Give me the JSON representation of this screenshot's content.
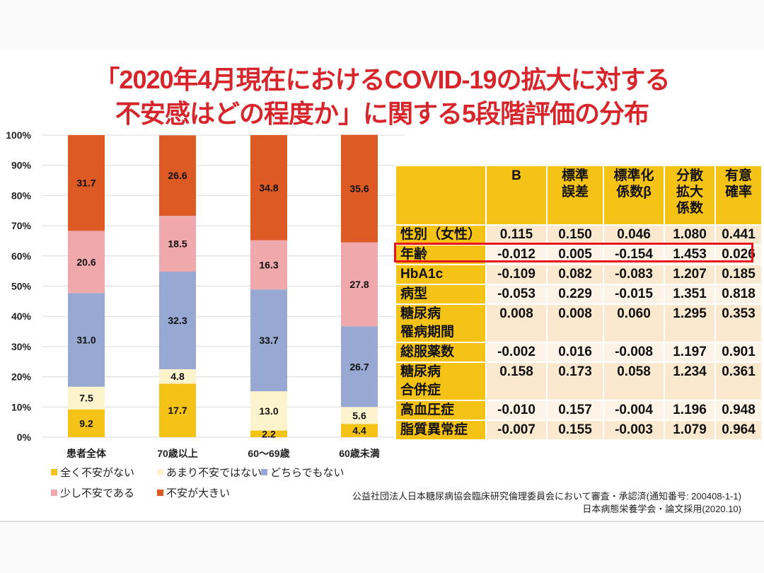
{
  "title": {
    "line1": "「2020年4月現在におけるCOVID-19の拡大に対する",
    "line2": "不安感はどの程度か」に関する5段階評価の分布"
  },
  "chart_data": {
    "type": "bar",
    "stacked": true,
    "percent_stacked": true,
    "categories": [
      "患者全体",
      "70歳以上",
      "60〜69歳",
      "60歳未満"
    ],
    "series": [
      {
        "name": "全く不安がない",
        "color": "#f5c216",
        "values": [
          9.2,
          17.7,
          2.2,
          4.4
        ]
      },
      {
        "name": "あまり不安ではない",
        "color": "#fdf3cc",
        "values": [
          7.5,
          4.8,
          13.0,
          5.6
        ]
      },
      {
        "name": "どちらでもない",
        "color": "#97a8d2",
        "values": [
          31.0,
          32.3,
          33.7,
          26.7
        ]
      },
      {
        "name": "少し不安である",
        "color": "#efa8ac",
        "values": [
          20.6,
          18.5,
          16.3,
          27.8
        ]
      },
      {
        "name": "不安が大きい",
        "color": "#de5a24",
        "values": [
          31.7,
          26.6,
          34.8,
          35.6
        ]
      }
    ],
    "yticks": [
      "0%",
      "10%",
      "20%",
      "30%",
      "40%",
      "50%",
      "60%",
      "70%",
      "80%",
      "90%",
      "100%"
    ],
    "ylim": [
      0,
      100
    ],
    "grid": true,
    "legend_position": "bottom",
    "xlabel": "",
    "ylabel": ""
  },
  "table": {
    "headers": [
      {
        "lines": [
          ""
        ]
      },
      {
        "lines": [
          "B"
        ]
      },
      {
        "lines": [
          "標準",
          "誤差"
        ]
      },
      {
        "lines": [
          "標準化",
          "係数β"
        ]
      },
      {
        "lines": [
          "分散",
          "拡大",
          "係数"
        ]
      },
      {
        "lines": [
          "有意",
          "確率"
        ]
      }
    ],
    "rows": [
      {
        "label": [
          "性別（女性）"
        ],
        "values": [
          "0.115",
          "0.150",
          "0.046",
          "1.080",
          "0.441"
        ]
      },
      {
        "label": [
          "年齢"
        ],
        "values": [
          "-0.012",
          "0.005",
          "-0.154",
          "1.453",
          "0.026"
        ],
        "highlighted": true
      },
      {
        "label": [
          "HbA1c"
        ],
        "values": [
          "-0.109",
          "0.082",
          "-0.083",
          "1.207",
          "0.185"
        ]
      },
      {
        "label": [
          "病型"
        ],
        "values": [
          "-0.053",
          "0.229",
          "-0.015",
          "1.351",
          "0.818"
        ]
      },
      {
        "label": [
          "糖尿病",
          "罹病期間"
        ],
        "values": [
          "0.008",
          "0.008",
          "0.060",
          "1.295",
          "0.353"
        ]
      },
      {
        "label": [
          "総服薬数"
        ],
        "values": [
          "-0.002",
          "0.016",
          "-0.008",
          "1.197",
          "0.901"
        ]
      },
      {
        "label": [
          "糖尿病",
          "合併症"
        ],
        "values": [
          "0.158",
          "0.173",
          "0.058",
          "1.234",
          "0.361"
        ]
      },
      {
        "label": [
          "高血圧症"
        ],
        "values": [
          "-0.010",
          "0.157",
          "-0.004",
          "1.196",
          "0.948"
        ]
      },
      {
        "label": [
          "脂質異常症"
        ],
        "values": [
          "-0.007",
          "0.155",
          "-0.003",
          "1.079",
          "0.964"
        ]
      }
    ],
    "colors": {
      "header": "#f5c216",
      "highlight_border": "#e8121c"
    }
  },
  "footnote": {
    "line1": "公益社団法人日本糖尿病協会臨床研究倫理委員会において審査・承認済(通知番号: 200408-1-1)",
    "line2": "日本病態栄養学会・論文採用(2020.10)"
  },
  "colors": {
    "title": "#d7262b"
  }
}
